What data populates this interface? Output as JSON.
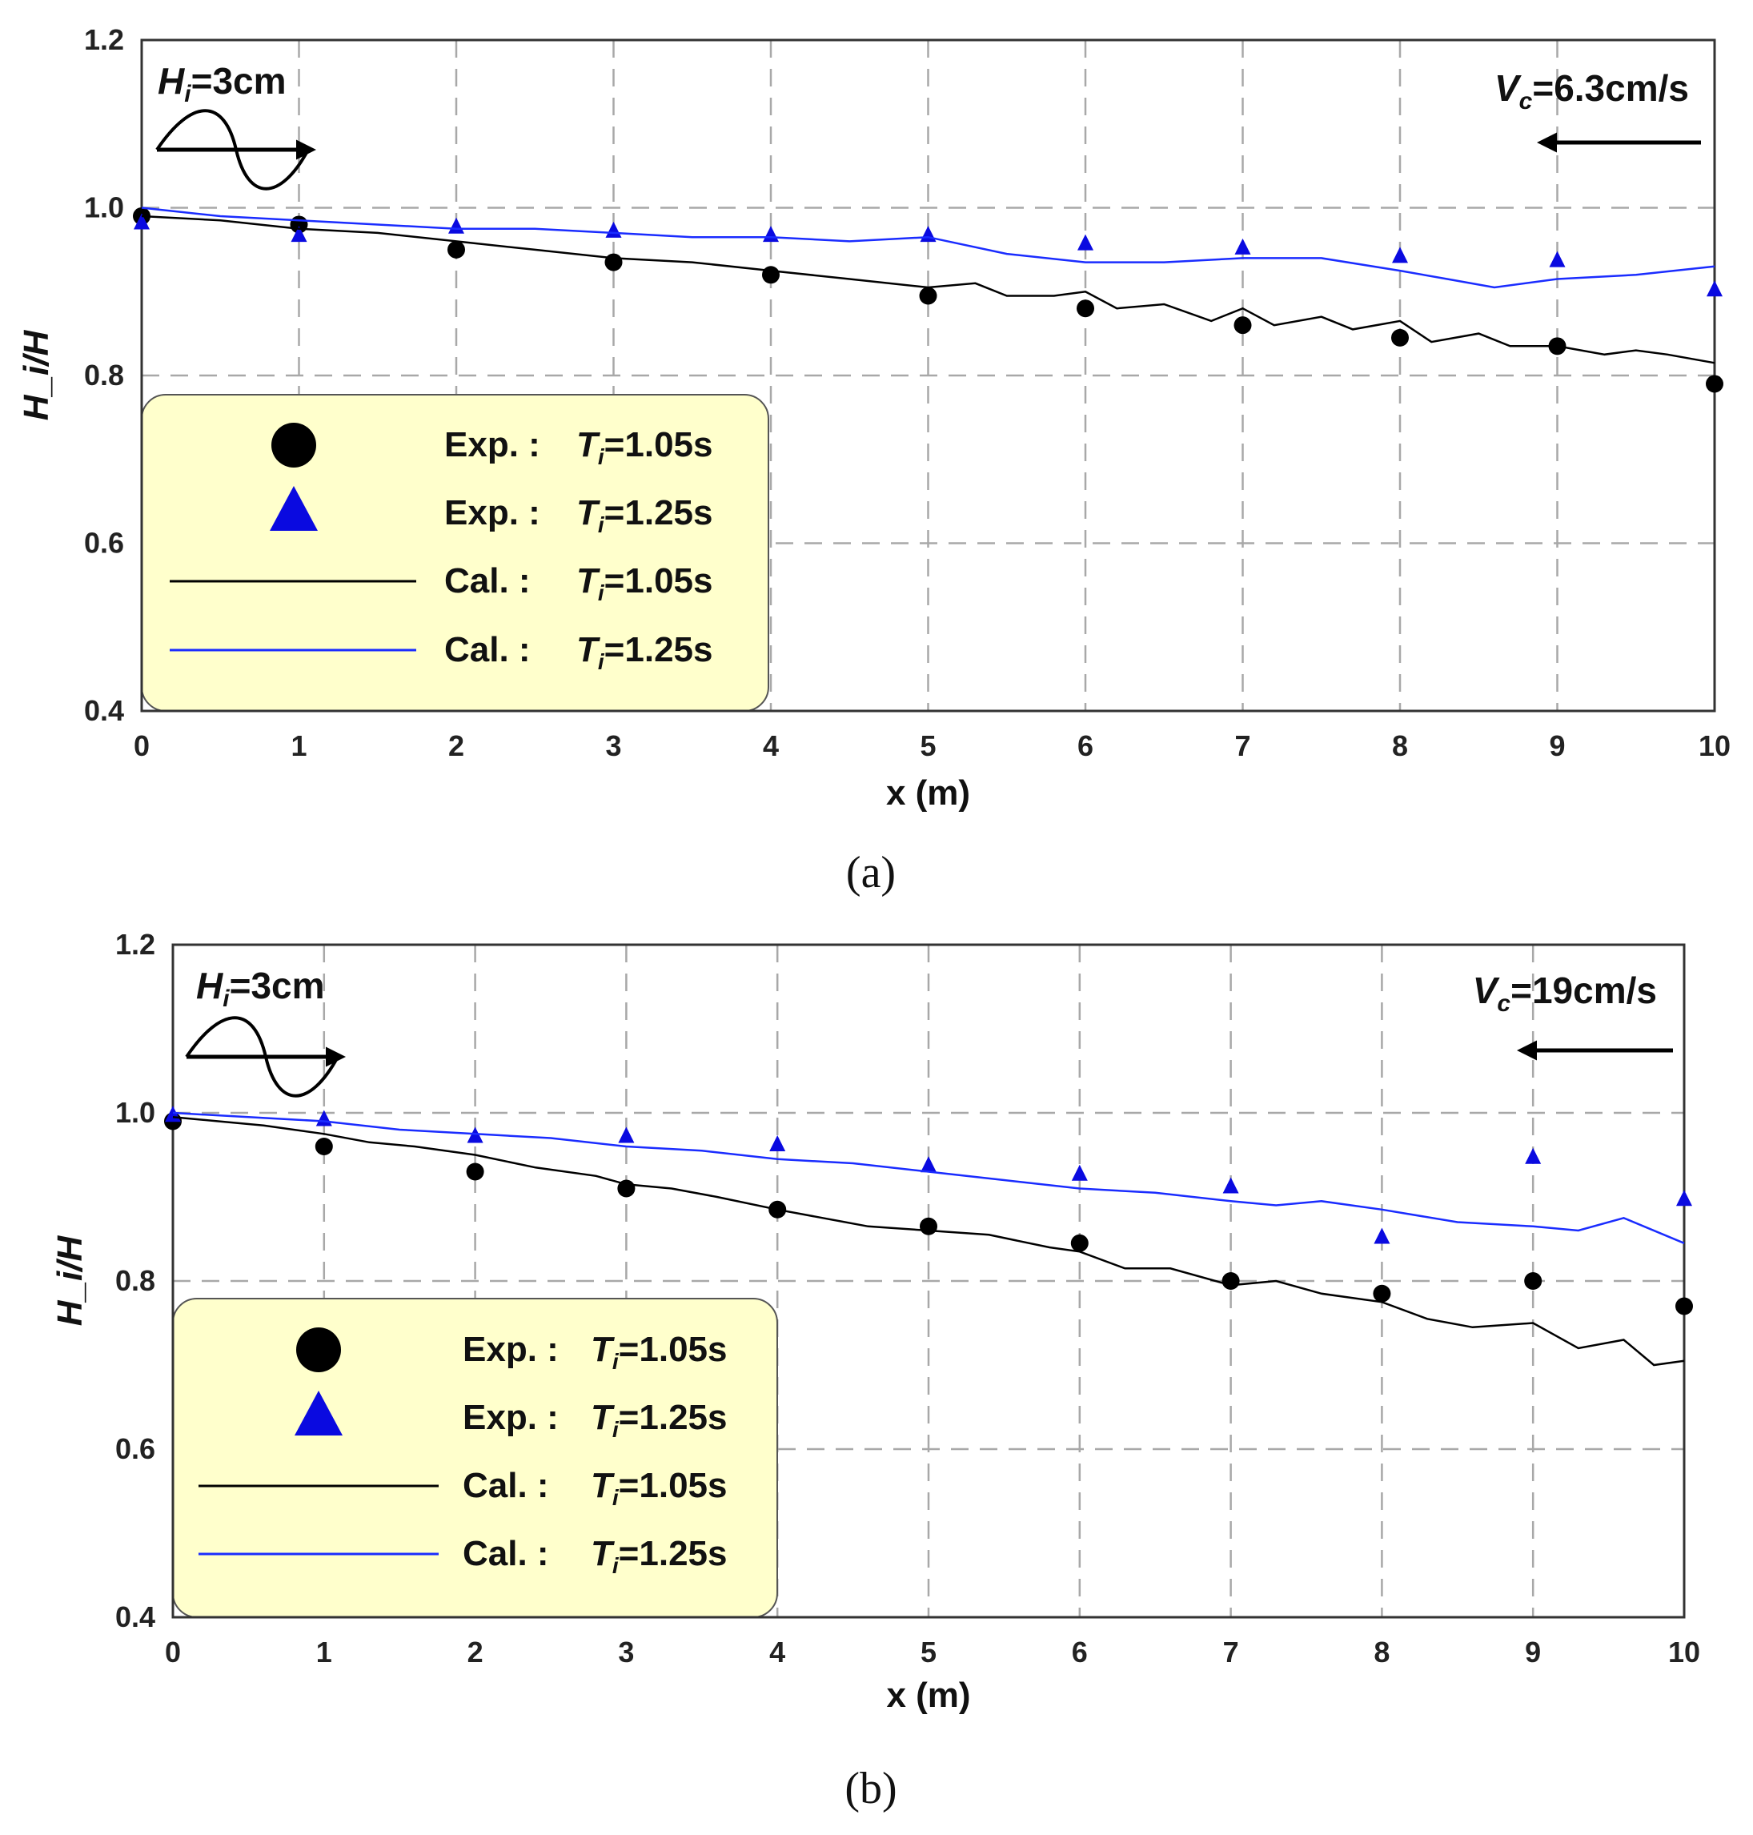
{
  "chart_data": [
    {
      "type": "scatter",
      "panel_label": "(a)",
      "xlabel": "x (m)",
      "ylabel": "H_i/H",
      "xlim": [
        0,
        10
      ],
      "ylim": [
        0.4,
        1.2
      ],
      "x_ticks": [
        "0",
        "1",
        "2",
        "3",
        "4",
        "5",
        "6",
        "7",
        "8",
        "9",
        "10"
      ],
      "y_ticks": [
        "0.4",
        "0.6",
        "0.8",
        "1.0",
        "1.2"
      ],
      "grid": "dashed",
      "wave_annotation": {
        "symbol": "H",
        "sub": "i",
        "text": "=3cm"
      },
      "current_annotation": {
        "symbol": "V",
        "sub": "c",
        "text": "=6.3cm/s"
      },
      "legend": [
        {
          "prefix": "Exp. :",
          "symbol": "T",
          "sub": "i",
          "value": "=1.05s",
          "marker": "circle",
          "color": "#000000"
        },
        {
          "prefix": "Exp. :",
          "symbol": "T",
          "sub": "i",
          "value": "=1.25s",
          "marker": "triangle",
          "color": "#0a0ae0"
        },
        {
          "prefix": "Cal. :",
          "symbol": "T",
          "sub": "i",
          "value": "=1.05s",
          "marker": "line",
          "color": "#000000"
        },
        {
          "prefix": "Cal. :",
          "symbol": "T",
          "sub": "i",
          "value": "=1.25s",
          "marker": "line",
          "color": "#1a2cff"
        }
      ],
      "series": [
        {
          "name": "Exp. T_i=1.05s",
          "kind": "points",
          "marker": "circle",
          "color": "#000000",
          "x": [
            0,
            1,
            2,
            3,
            4,
            5,
            6,
            7,
            8,
            9,
            10
          ],
          "y": [
            0.99,
            0.98,
            0.95,
            0.935,
            0.92,
            0.895,
            0.88,
            0.86,
            0.845,
            0.835,
            0.79
          ]
        },
        {
          "name": "Exp. T_i=1.25s",
          "kind": "points",
          "marker": "triangle",
          "color": "#0a0ae0",
          "x": [
            0,
            1,
            2,
            3,
            4,
            5,
            6,
            7,
            8,
            9,
            10
          ],
          "y": [
            0.98,
            0.965,
            0.975,
            0.97,
            0.965,
            0.965,
            0.955,
            0.95,
            0.94,
            0.935,
            0.9
          ]
        },
        {
          "name": "Cal. T_i=1.05s",
          "kind": "line",
          "color": "#000000",
          "x": [
            0,
            0.5,
            1,
            1.5,
            2,
            2.5,
            3,
            3.5,
            4,
            4.5,
            5,
            5.3,
            5.5,
            5.8,
            6,
            6.2,
            6.5,
            6.8,
            7,
            7.2,
            7.5,
            7.7,
            8,
            8.2,
            8.5,
            8.7,
            9,
            9.3,
            9.5,
            9.7,
            10
          ],
          "y": [
            0.99,
            0.985,
            0.975,
            0.97,
            0.96,
            0.95,
            0.94,
            0.935,
            0.925,
            0.915,
            0.905,
            0.91,
            0.895,
            0.895,
            0.9,
            0.88,
            0.885,
            0.865,
            0.88,
            0.86,
            0.87,
            0.855,
            0.865,
            0.84,
            0.85,
            0.835,
            0.835,
            0.825,
            0.83,
            0.825,
            0.815
          ]
        },
        {
          "name": "Cal. T_i=1.25s",
          "kind": "line",
          "color": "#1a2cff",
          "x": [
            0,
            0.5,
            1,
            1.5,
            2,
            2.5,
            3,
            3.5,
            4,
            4.5,
            5,
            5.5,
            6,
            6.5,
            7,
            7.5,
            8,
            8.3,
            8.6,
            9,
            9.5,
            10
          ],
          "y": [
            1.0,
            0.99,
            0.985,
            0.98,
            0.975,
            0.975,
            0.97,
            0.965,
            0.965,
            0.96,
            0.965,
            0.945,
            0.935,
            0.935,
            0.94,
            0.94,
            0.925,
            0.915,
            0.905,
            0.915,
            0.92,
            0.93
          ]
        }
      ]
    },
    {
      "type": "scatter",
      "panel_label": "(b)",
      "xlabel": "x (m)",
      "ylabel": "H_i/H",
      "xlim": [
        0,
        10
      ],
      "ylim": [
        0.4,
        1.2
      ],
      "x_ticks": [
        "0",
        "1",
        "2",
        "3",
        "4",
        "5",
        "6",
        "7",
        "8",
        "9",
        "10"
      ],
      "y_ticks": [
        "0.4",
        "0.6",
        "0.8",
        "1.0",
        "1.2"
      ],
      "grid": "dashed",
      "wave_annotation": {
        "symbol": "H",
        "sub": "i",
        "text": "=3cm"
      },
      "current_annotation": {
        "symbol": "V",
        "sub": "c",
        "text": "=19cm/s"
      },
      "legend": [
        {
          "prefix": "Exp. :",
          "symbol": "T",
          "sub": "i",
          "value": "=1.05s",
          "marker": "circle",
          "color": "#000000"
        },
        {
          "prefix": "Exp. :",
          "symbol": "T",
          "sub": "i",
          "value": "=1.25s",
          "marker": "triangle",
          "color": "#0a0ae0"
        },
        {
          "prefix": "Cal. :",
          "symbol": "T",
          "sub": "i",
          "value": "=1.05s",
          "marker": "line",
          "color": "#000000"
        },
        {
          "prefix": "Cal. :",
          "symbol": "T",
          "sub": "i",
          "value": "=1.25s",
          "marker": "line",
          "color": "#1a2cff"
        }
      ],
      "series": [
        {
          "name": "Exp. T_i=1.05s",
          "kind": "points",
          "marker": "circle",
          "color": "#000000",
          "x": [
            0,
            1,
            2,
            3,
            4,
            5,
            6,
            7,
            8,
            9,
            10
          ],
          "y": [
            0.99,
            0.96,
            0.93,
            0.91,
            0.885,
            0.865,
            0.845,
            0.8,
            0.785,
            0.8,
            0.77
          ]
        },
        {
          "name": "Exp. T_i=1.25s",
          "kind": "points",
          "marker": "triangle",
          "color": "#0a0ae0",
          "x": [
            0,
            1,
            2,
            3,
            4,
            5,
            6,
            7,
            8,
            9,
            10
          ],
          "y": [
            0.995,
            0.99,
            0.97,
            0.97,
            0.96,
            0.935,
            0.925,
            0.91,
            0.85,
            0.945,
            0.895
          ]
        },
        {
          "name": "Cal. T_i=1.05s",
          "kind": "line",
          "color": "#000000",
          "x": [
            0,
            0.3,
            0.6,
            1,
            1.3,
            1.6,
            2,
            2.4,
            2.8,
            3,
            3.3,
            3.6,
            4,
            4.3,
            4.6,
            5,
            5.4,
            5.8,
            6,
            6.3,
            6.6,
            7,
            7.3,
            7.6,
            8,
            8.3,
            8.6,
            9,
            9.3,
            9.6,
            9.8,
            10
          ],
          "y": [
            0.995,
            0.99,
            0.985,
            0.975,
            0.965,
            0.96,
            0.95,
            0.935,
            0.925,
            0.915,
            0.91,
            0.9,
            0.885,
            0.875,
            0.865,
            0.86,
            0.855,
            0.84,
            0.835,
            0.815,
            0.815,
            0.795,
            0.8,
            0.785,
            0.775,
            0.755,
            0.745,
            0.75,
            0.72,
            0.73,
            0.7,
            0.705
          ]
        },
        {
          "name": "Cal. T_i=1.25s",
          "kind": "line",
          "color": "#1a2cff",
          "x": [
            0,
            0.5,
            1,
            1.5,
            2,
            2.5,
            3,
            3.5,
            4,
            4.5,
            5,
            5.5,
            6,
            6.5,
            7,
            7.3,
            7.6,
            8,
            8.5,
            9,
            9.3,
            9.6,
            10
          ],
          "y": [
            1.0,
            0.995,
            0.99,
            0.98,
            0.975,
            0.97,
            0.96,
            0.955,
            0.945,
            0.94,
            0.93,
            0.92,
            0.91,
            0.905,
            0.895,
            0.89,
            0.895,
            0.885,
            0.87,
            0.865,
            0.86,
            0.875,
            0.845
          ]
        }
      ]
    }
  ]
}
